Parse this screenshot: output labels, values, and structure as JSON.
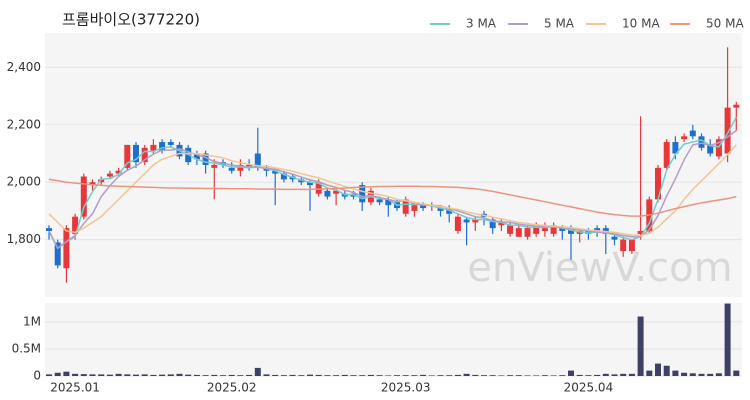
{
  "chart_data": {
    "type": "candlestick",
    "title": "프롬바이오(377220)",
    "watermark": "enViewV.com",
    "categories": [
      null,
      null,
      null,
      "2025.01",
      null,
      null,
      null,
      null,
      null,
      null,
      null,
      null,
      null,
      null,
      null,
      null,
      null,
      null,
      null,
      null,
      null,
      "2025.02",
      null,
      null,
      null,
      null,
      null,
      null,
      null,
      null,
      null,
      null,
      null,
      null,
      null,
      null,
      null,
      null,
      null,
      null,
      null,
      "2025.03",
      null,
      null,
      null,
      null,
      null,
      null,
      null,
      null,
      null,
      null,
      null,
      null,
      null,
      null,
      null,
      null,
      null,
      null,
      null,
      null,
      "2025.04",
      null,
      null,
      null,
      null,
      null,
      null,
      null,
      null,
      null,
      null,
      null,
      null,
      null,
      null,
      null,
      null,
      null
    ],
    "ohlc": [
      [
        1840,
        1850,
        1800,
        1830
      ],
      [
        1790,
        1800,
        1700,
        1710
      ],
      [
        1700,
        1850,
        1650,
        1840
      ],
      [
        1820,
        1890,
        1800,
        1880
      ],
      [
        1880,
        2030,
        1870,
        2020
      ],
      [
        1990,
        2010,
        1970,
        2000
      ],
      [
        2000,
        2020,
        1990,
        2010
      ],
      [
        2020,
        2040,
        2010,
        2030
      ],
      [
        2030,
        2050,
        2020,
        2040
      ],
      [
        2050,
        2130,
        2040,
        2130
      ],
      [
        2130,
        2140,
        2050,
        2070
      ],
      [
        2070,
        2130,
        2060,
        2120
      ],
      [
        2110,
        2150,
        2100,
        2130
      ],
      [
        2140,
        2150,
        2100,
        2110
      ],
      [
        2140,
        2150,
        2120,
        2130
      ],
      [
        2130,
        2140,
        2080,
        2090
      ],
      [
        2120,
        2130,
        2060,
        2070
      ],
      [
        2100,
        2110,
        2060,
        2080
      ],
      [
        2100,
        2110,
        2030,
        2060
      ],
      [
        2050,
        2080,
        1940,
        2060
      ],
      [
        2070,
        2080,
        2050,
        2060
      ],
      [
        2050,
        2070,
        2030,
        2040
      ],
      [
        2040,
        2080,
        2020,
        2060
      ],
      [
        2060,
        2080,
        2040,
        2050
      ],
      [
        2100,
        2190,
        2040,
        2050
      ],
      [
        2050,
        2060,
        2020,
        2040
      ],
      [
        2040,
        2050,
        1920,
        2030
      ],
      [
        2030,
        2040,
        2000,
        2010
      ],
      [
        2020,
        2030,
        2000,
        2010
      ],
      [
        2010,
        2020,
        1990,
        2000
      ],
      [
        2000,
        2010,
        1900,
        1990
      ],
      [
        1960,
        2010,
        1950,
        2000
      ],
      [
        1970,
        1980,
        1940,
        1950
      ],
      [
        1960,
        1980,
        1920,
        1970
      ],
      [
        1960,
        1970,
        1940,
        1950
      ],
      [
        1960,
        1970,
        1940,
        1950
      ],
      [
        1990,
        2000,
        1900,
        1930
      ],
      [
        1930,
        1980,
        1920,
        1970
      ],
      [
        1940,
        1950,
        1920,
        1930
      ],
      [
        1940,
        1950,
        1880,
        1920
      ],
      [
        1930,
        1940,
        1900,
        1910
      ],
      [
        1890,
        1950,
        1880,
        1940
      ],
      [
        1900,
        1930,
        1880,
        1920
      ],
      [
        1920,
        1930,
        1900,
        1910
      ],
      [
        1920,
        1930,
        1900,
        1920
      ],
      [
        1910,
        1920,
        1880,
        1900
      ],
      [
        1910,
        1920,
        1860,
        1890
      ],
      [
        1830,
        1890,
        1820,
        1880
      ],
      [
        1870,
        1880,
        1780,
        1860
      ],
      [
        1860,
        1880,
        1830,
        1870
      ],
      [
        1890,
        1900,
        1850,
        1880
      ],
      [
        1870,
        1880,
        1820,
        1840
      ],
      [
        1850,
        1870,
        1830,
        1860
      ],
      [
        1820,
        1860,
        1810,
        1850
      ],
      [
        1810,
        1850,
        1810,
        1840
      ],
      [
        1810,
        1850,
        1800,
        1840
      ],
      [
        1820,
        1860,
        1810,
        1850
      ],
      [
        1830,
        1860,
        1810,
        1840
      ],
      [
        1820,
        1860,
        1810,
        1850
      ],
      [
        1840,
        1850,
        1800,
        1830
      ],
      [
        1840,
        1850,
        1730,
        1820
      ],
      [
        1820,
        1840,
        1790,
        1830
      ],
      [
        1830,
        1840,
        1800,
        1820
      ],
      [
        1840,
        1850,
        1810,
        1830
      ],
      [
        1840,
        1850,
        1750,
        1820
      ],
      [
        1810,
        1820,
        1780,
        1800
      ],
      [
        1760,
        1810,
        1740,
        1800
      ],
      [
        1760,
        1800,
        1750,
        1800
      ],
      [
        1820,
        2230,
        1800,
        1830
      ],
      [
        1830,
        1950,
        1820,
        1940
      ],
      [
        1940,
        2060,
        1930,
        2050
      ],
      [
        2050,
        2150,
        2040,
        2140
      ],
      [
        2140,
        2160,
        2080,
        2100
      ],
      [
        2150,
        2170,
        2140,
        2160
      ],
      [
        2180,
        2200,
        2150,
        2160
      ],
      [
        2160,
        2170,
        2110,
        2120
      ],
      [
        2130,
        2150,
        2090,
        2100
      ],
      [
        2090,
        2160,
        2080,
        2150
      ],
      [
        2100,
        2470,
        2070,
        2260
      ],
      [
        2260,
        2280,
        2180,
        2270
      ]
    ],
    "up_color": "#e8373a",
    "down_color": "#1f6fd1",
    "ylim": [
      1600,
      2520
    ],
    "yticks": [
      {
        "value": 1800,
        "label": "1,800"
      },
      {
        "value": 2000,
        "label": "2,000"
      },
      {
        "value": 2200,
        "label": "2,200"
      },
      {
        "value": 2400,
        "label": "2,400"
      }
    ],
    "grid": true,
    "legend": "top-right",
    "series": [
      {
        "name": "3 MA",
        "color": "#6fcfcf",
        "values": [
          1830,
          1770,
          1793,
          1810,
          1913,
          1967,
          2010,
          2013,
          2027,
          2067,
          2080,
          2107,
          2107,
          2120,
          2123,
          2110,
          2097,
          2080,
          2070,
          2067,
          2060,
          2053,
          2053,
          2050,
          2053,
          2047,
          2040,
          2027,
          2017,
          2007,
          2000,
          1997,
          1980,
          1973,
          1957,
          1957,
          1943,
          1950,
          1943,
          1940,
          1920,
          1923,
          1923,
          1923,
          1917,
          1910,
          1903,
          1890,
          1877,
          1870,
          1870,
          1863,
          1860,
          1850,
          1850,
          1843,
          1843,
          1843,
          1847,
          1840,
          1833,
          1827,
          1823,
          1827,
          1823,
          1817,
          1807,
          1800,
          1810,
          1857,
          1940,
          2043,
          2097,
          2133,
          2140,
          2147,
          2127,
          2123,
          2170,
          2227
        ]
      },
      {
        "name": "5 MA",
        "color": "#b39ccb",
        "values": [
          1830,
          1770,
          1793,
          1815,
          1856,
          1890,
          1950,
          1988,
          2020,
          2042,
          2056,
          2078,
          2098,
          2112,
          2112,
          2116,
          2106,
          2096,
          2086,
          2072,
          2066,
          2060,
          2056,
          2054,
          2052,
          2048,
          2046,
          2036,
          2028,
          2018,
          2008,
          2002,
          1990,
          1982,
          1972,
          1964,
          1950,
          1954,
          1946,
          1940,
          1932,
          1938,
          1924,
          1920,
          1920,
          1918,
          1908,
          1900,
          1890,
          1880,
          1876,
          1866,
          1862,
          1860,
          1854,
          1850,
          1848,
          1844,
          1844,
          1842,
          1838,
          1834,
          1830,
          1826,
          1824,
          1820,
          1814,
          1810,
          1810,
          1834,
          1884,
          1952,
          2012,
          2078,
          2130,
          2136,
          2128,
          2138,
          2158,
          2180
        ]
      },
      {
        "name": "10 MA",
        "color": "#f3c58f",
        "values": [
          1890,
          1860,
          1830,
          1825,
          1840,
          1860,
          1880,
          1910,
          1940,
          1970,
          2000,
          2030,
          2060,
          2080,
          2090,
          2100,
          2100,
          2100,
          2095,
          2090,
          2085,
          2075,
          2068,
          2062,
          2058,
          2055,
          2050,
          2045,
          2038,
          2030,
          2022,
          2015,
          2005,
          1995,
          1985,
          1977,
          1968,
          1962,
          1957,
          1950,
          1940,
          1935,
          1930,
          1925,
          1920,
          1915,
          1910,
          1905,
          1897,
          1890,
          1885,
          1878,
          1872,
          1866,
          1860,
          1856,
          1852,
          1849,
          1847,
          1845,
          1842,
          1838,
          1834,
          1831,
          1828,
          1825,
          1820,
          1816,
          1814,
          1822,
          1843,
          1873,
          1900,
          1940,
          1975,
          2005,
          2035,
          2065,
          2097,
          2130
        ]
      },
      {
        "name": "50 MA",
        "color": "#f0937c",
        "values": [
          2010,
          2005,
          2000,
          1997,
          1994,
          1991,
          1989,
          1987,
          1986,
          1985,
          1984,
          1983,
          1982,
          1981,
          1980,
          1980,
          1979,
          1979,
          1978,
          1978,
          1978,
          1977,
          1977,
          1977,
          1976,
          1976,
          1976,
          1975,
          1975,
          1975,
          1975,
          1976,
          1977,
          1978,
          1980,
          1982,
          1983,
          1984,
          1985,
          1985,
          1986,
          1986,
          1986,
          1985,
          1985,
          1984,
          1983,
          1982,
          1980,
          1977,
          1973,
          1968,
          1962,
          1956,
          1950,
          1944,
          1938,
          1932,
          1926,
          1920,
          1914,
          1908,
          1902,
          1896,
          1891,
          1887,
          1884,
          1882,
          1882,
          1886,
          1892,
          1900,
          1908,
          1915,
          1922,
          1928,
          1933,
          1938,
          1943,
          1950
        ]
      }
    ],
    "volume": {
      "color": "#3f4066",
      "values": [
        30000,
        60000,
        80000,
        40000,
        35000,
        30000,
        30000,
        25000,
        40000,
        30000,
        25000,
        30000,
        20000,
        25000,
        30000,
        40000,
        25000,
        20000,
        15000,
        20000,
        15000,
        20000,
        15000,
        20000,
        150000,
        30000,
        20000,
        15000,
        20000,
        15000,
        25000,
        20000,
        15000,
        15000,
        20000,
        15000,
        15000,
        20000,
        15000,
        10000,
        15000,
        15000,
        15000,
        20000,
        10000,
        15000,
        15000,
        20000,
        40000,
        20000,
        15000,
        15000,
        10000,
        15000,
        15000,
        10000,
        10000,
        15000,
        10000,
        15000,
        100000,
        20000,
        15000,
        20000,
        40000,
        30000,
        40000,
        40000,
        1100000,
        100000,
        230000,
        190000,
        100000,
        60000,
        50000,
        40000,
        40000,
        50000,
        1340000,
        100000
      ],
      "ylim": [
        0,
        1350000
      ],
      "yticks": [
        0,
        {
          "value": 500000,
          "label": "0.5M"
        },
        {
          "value": 1000000,
          "label": "1M"
        }
      ]
    }
  }
}
